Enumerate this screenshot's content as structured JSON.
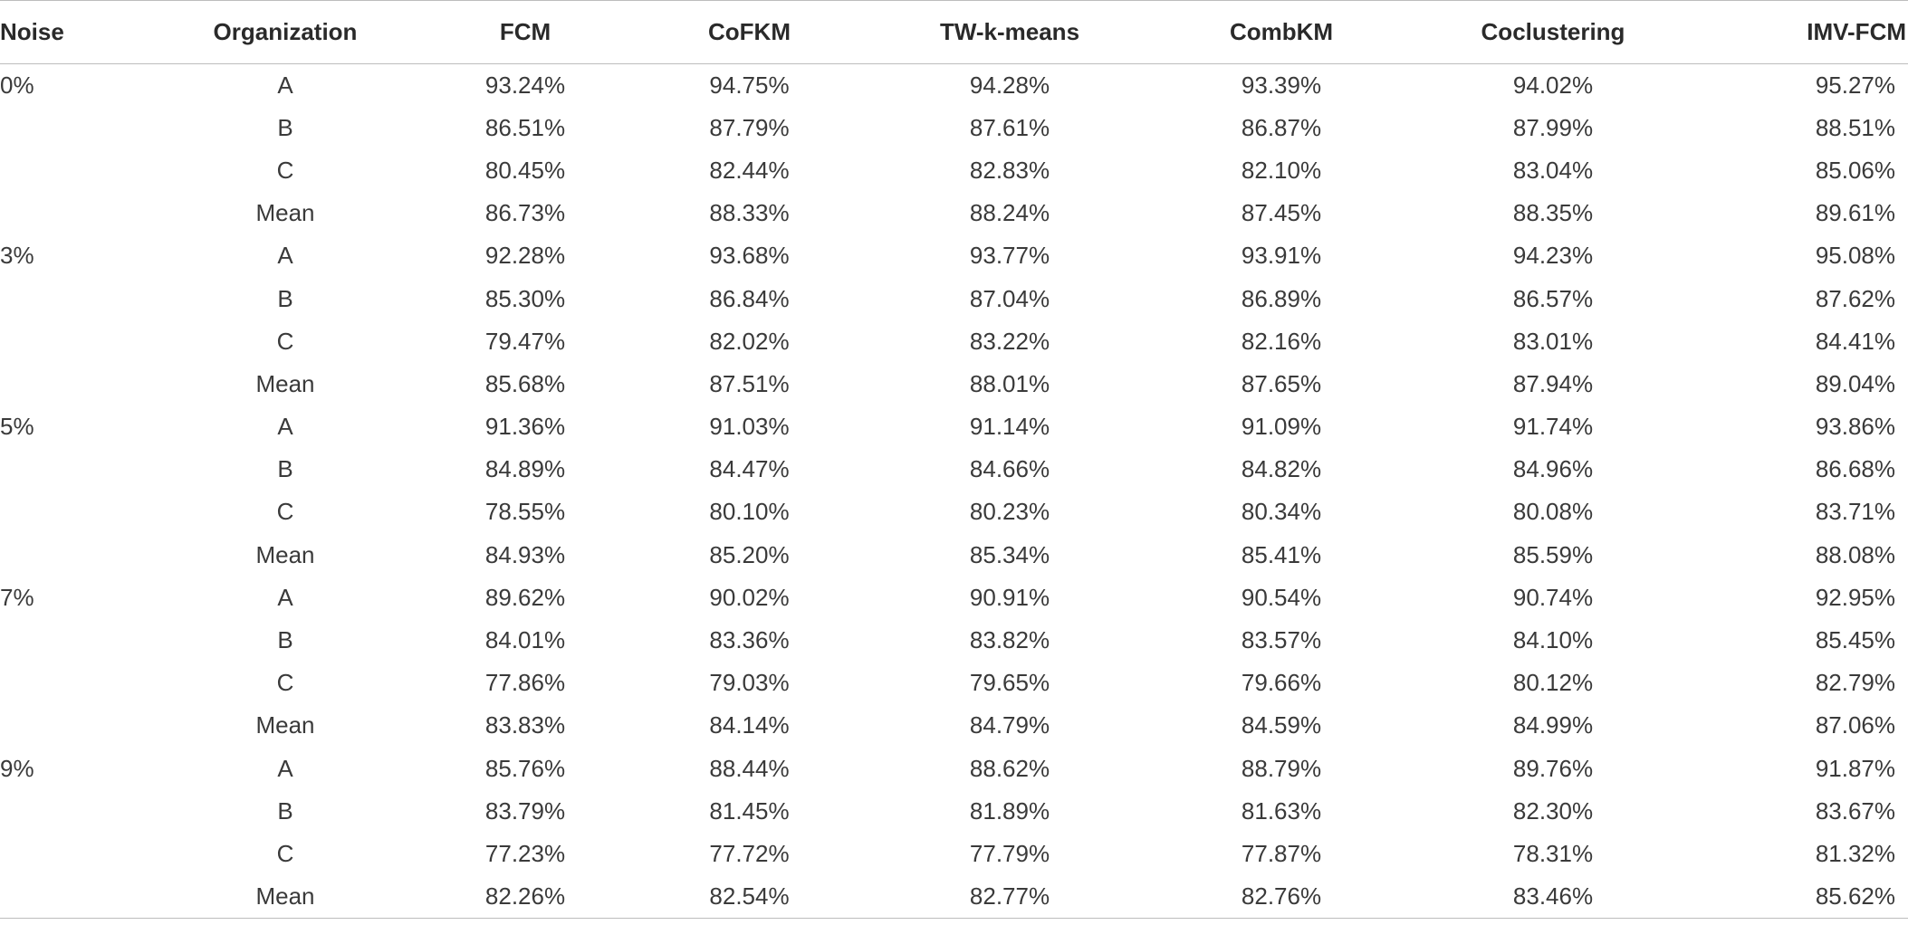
{
  "table": {
    "headers": {
      "noise": "Noise",
      "organization": "Organization",
      "fcm": "FCM",
      "cofkm": "CoFKM",
      "twkmeans": "TW-k-means",
      "combkm": "CombKM",
      "coclustering": "Coclustering",
      "imvfcm": "IMV-FCM"
    },
    "rows": [
      {
        "noise": "0%",
        "org": "A",
        "fcm": "93.24%",
        "cofkm": "94.75%",
        "tw": "94.28%",
        "comb": "93.39%",
        "cocl": "94.02%",
        "imv": "95.27%"
      },
      {
        "noise": "",
        "org": "B",
        "fcm": "86.51%",
        "cofkm": "87.79%",
        "tw": "87.61%",
        "comb": "86.87%",
        "cocl": "87.99%",
        "imv": "88.51%"
      },
      {
        "noise": "",
        "org": "C",
        "fcm": "80.45%",
        "cofkm": "82.44%",
        "tw": "82.83%",
        "comb": "82.10%",
        "cocl": "83.04%",
        "imv": "85.06%"
      },
      {
        "noise": "",
        "org": "Mean",
        "fcm": "86.73%",
        "cofkm": "88.33%",
        "tw": "88.24%",
        "comb": "87.45%",
        "cocl": "88.35%",
        "imv": "89.61%"
      },
      {
        "noise": "3%",
        "org": "A",
        "fcm": "92.28%",
        "cofkm": "93.68%",
        "tw": "93.77%",
        "comb": "93.91%",
        "cocl": "94.23%",
        "imv": "95.08%"
      },
      {
        "noise": "",
        "org": "B",
        "fcm": "85.30%",
        "cofkm": "86.84%",
        "tw": "87.04%",
        "comb": "86.89%",
        "cocl": "86.57%",
        "imv": "87.62%"
      },
      {
        "noise": "",
        "org": "C",
        "fcm": "79.47%",
        "cofkm": "82.02%",
        "tw": "83.22%",
        "comb": "82.16%",
        "cocl": "83.01%",
        "imv": "84.41%"
      },
      {
        "noise": "",
        "org": "Mean",
        "fcm": "85.68%",
        "cofkm": "87.51%",
        "tw": "88.01%",
        "comb": "87.65%",
        "cocl": "87.94%",
        "imv": "89.04%"
      },
      {
        "noise": "5%",
        "org": "A",
        "fcm": "91.36%",
        "cofkm": "91.03%",
        "tw": "91.14%",
        "comb": "91.09%",
        "cocl": "91.74%",
        "imv": "93.86%"
      },
      {
        "noise": "",
        "org": "B",
        "fcm": "84.89%",
        "cofkm": "84.47%",
        "tw": "84.66%",
        "comb": "84.82%",
        "cocl": "84.96%",
        "imv": "86.68%"
      },
      {
        "noise": "",
        "org": "C",
        "fcm": "78.55%",
        "cofkm": "80.10%",
        "tw": "80.23%",
        "comb": "80.34%",
        "cocl": "80.08%",
        "imv": "83.71%"
      },
      {
        "noise": "",
        "org": "Mean",
        "fcm": "84.93%",
        "cofkm": "85.20%",
        "tw": "85.34%",
        "comb": "85.41%",
        "cocl": "85.59%",
        "imv": "88.08%"
      },
      {
        "noise": "7%",
        "org": "A",
        "fcm": "89.62%",
        "cofkm": "90.02%",
        "tw": "90.91%",
        "comb": "90.54%",
        "cocl": "90.74%",
        "imv": "92.95%"
      },
      {
        "noise": "",
        "org": "B",
        "fcm": "84.01%",
        "cofkm": "83.36%",
        "tw": "83.82%",
        "comb": "83.57%",
        "cocl": "84.10%",
        "imv": "85.45%"
      },
      {
        "noise": "",
        "org": "C",
        "fcm": "77.86%",
        "cofkm": "79.03%",
        "tw": "79.65%",
        "comb": "79.66%",
        "cocl": "80.12%",
        "imv": "82.79%"
      },
      {
        "noise": "",
        "org": "Mean",
        "fcm": "83.83%",
        "cofkm": "84.14%",
        "tw": "84.79%",
        "comb": "84.59%",
        "cocl": "84.99%",
        "imv": "87.06%"
      },
      {
        "noise": "9%",
        "org": "A",
        "fcm": "85.76%",
        "cofkm": "88.44%",
        "tw": "88.62%",
        "comb": "88.79%",
        "cocl": "89.76%",
        "imv": "91.87%"
      },
      {
        "noise": "",
        "org": "B",
        "fcm": "83.79%",
        "cofkm": "81.45%",
        "tw": "81.89%",
        "comb": "81.63%",
        "cocl": "82.30%",
        "imv": "83.67%"
      },
      {
        "noise": "",
        "org": "C",
        "fcm": "77.23%",
        "cofkm": "77.72%",
        "tw": "77.79%",
        "comb": "77.87%",
        "cocl": "78.31%",
        "imv": "81.32%"
      },
      {
        "noise": "",
        "org": "Mean",
        "fcm": "82.26%",
        "cofkm": "82.54%",
        "tw": "82.77%",
        "comb": "82.76%",
        "cocl": "83.46%",
        "imv": "85.62%"
      }
    ]
  }
}
